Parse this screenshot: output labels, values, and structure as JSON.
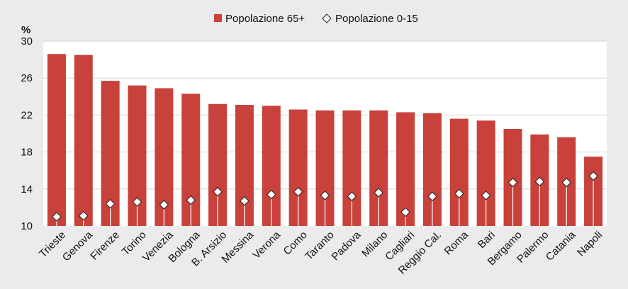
{
  "chart_data": {
    "type": "bar",
    "ylabel": "%",
    "ylim": [
      10,
      30
    ],
    "yticks": [
      10,
      14,
      18,
      22,
      26,
      30
    ],
    "grid": true,
    "legend_position": "top-center",
    "categories": [
      "Trieste",
      "Genova",
      "Firenze",
      "Torino",
      "Venezia",
      "Bologna",
      "B. Arsizio",
      "Messina",
      "Verona",
      "Como",
      "Taranto",
      "Padova",
      "Milano",
      "Cagliari",
      "Reggio Cal.",
      "Roma",
      "Bari",
      "Bergamo",
      "Palermo",
      "Catania",
      "Napoli"
    ],
    "series": [
      {
        "name": "Popolazione 65+",
        "kind": "bar",
        "color": "#c8413a",
        "values": [
          28.6,
          28.5,
          25.7,
          25.2,
          24.9,
          24.3,
          23.2,
          23.1,
          23.0,
          22.6,
          22.5,
          22.5,
          22.5,
          22.3,
          22.2,
          21.6,
          21.4,
          20.5,
          19.9,
          19.6,
          17.5
        ]
      },
      {
        "name": "Popolazione 0-15",
        "kind": "marker",
        "color": "#ffffff",
        "values": [
          11.0,
          11.1,
          12.4,
          12.6,
          12.3,
          12.8,
          13.7,
          12.7,
          13.4,
          13.7,
          13.3,
          13.2,
          13.6,
          11.5,
          13.2,
          13.5,
          13.3,
          14.7,
          14.8,
          14.7,
          15.4
        ]
      }
    ]
  }
}
